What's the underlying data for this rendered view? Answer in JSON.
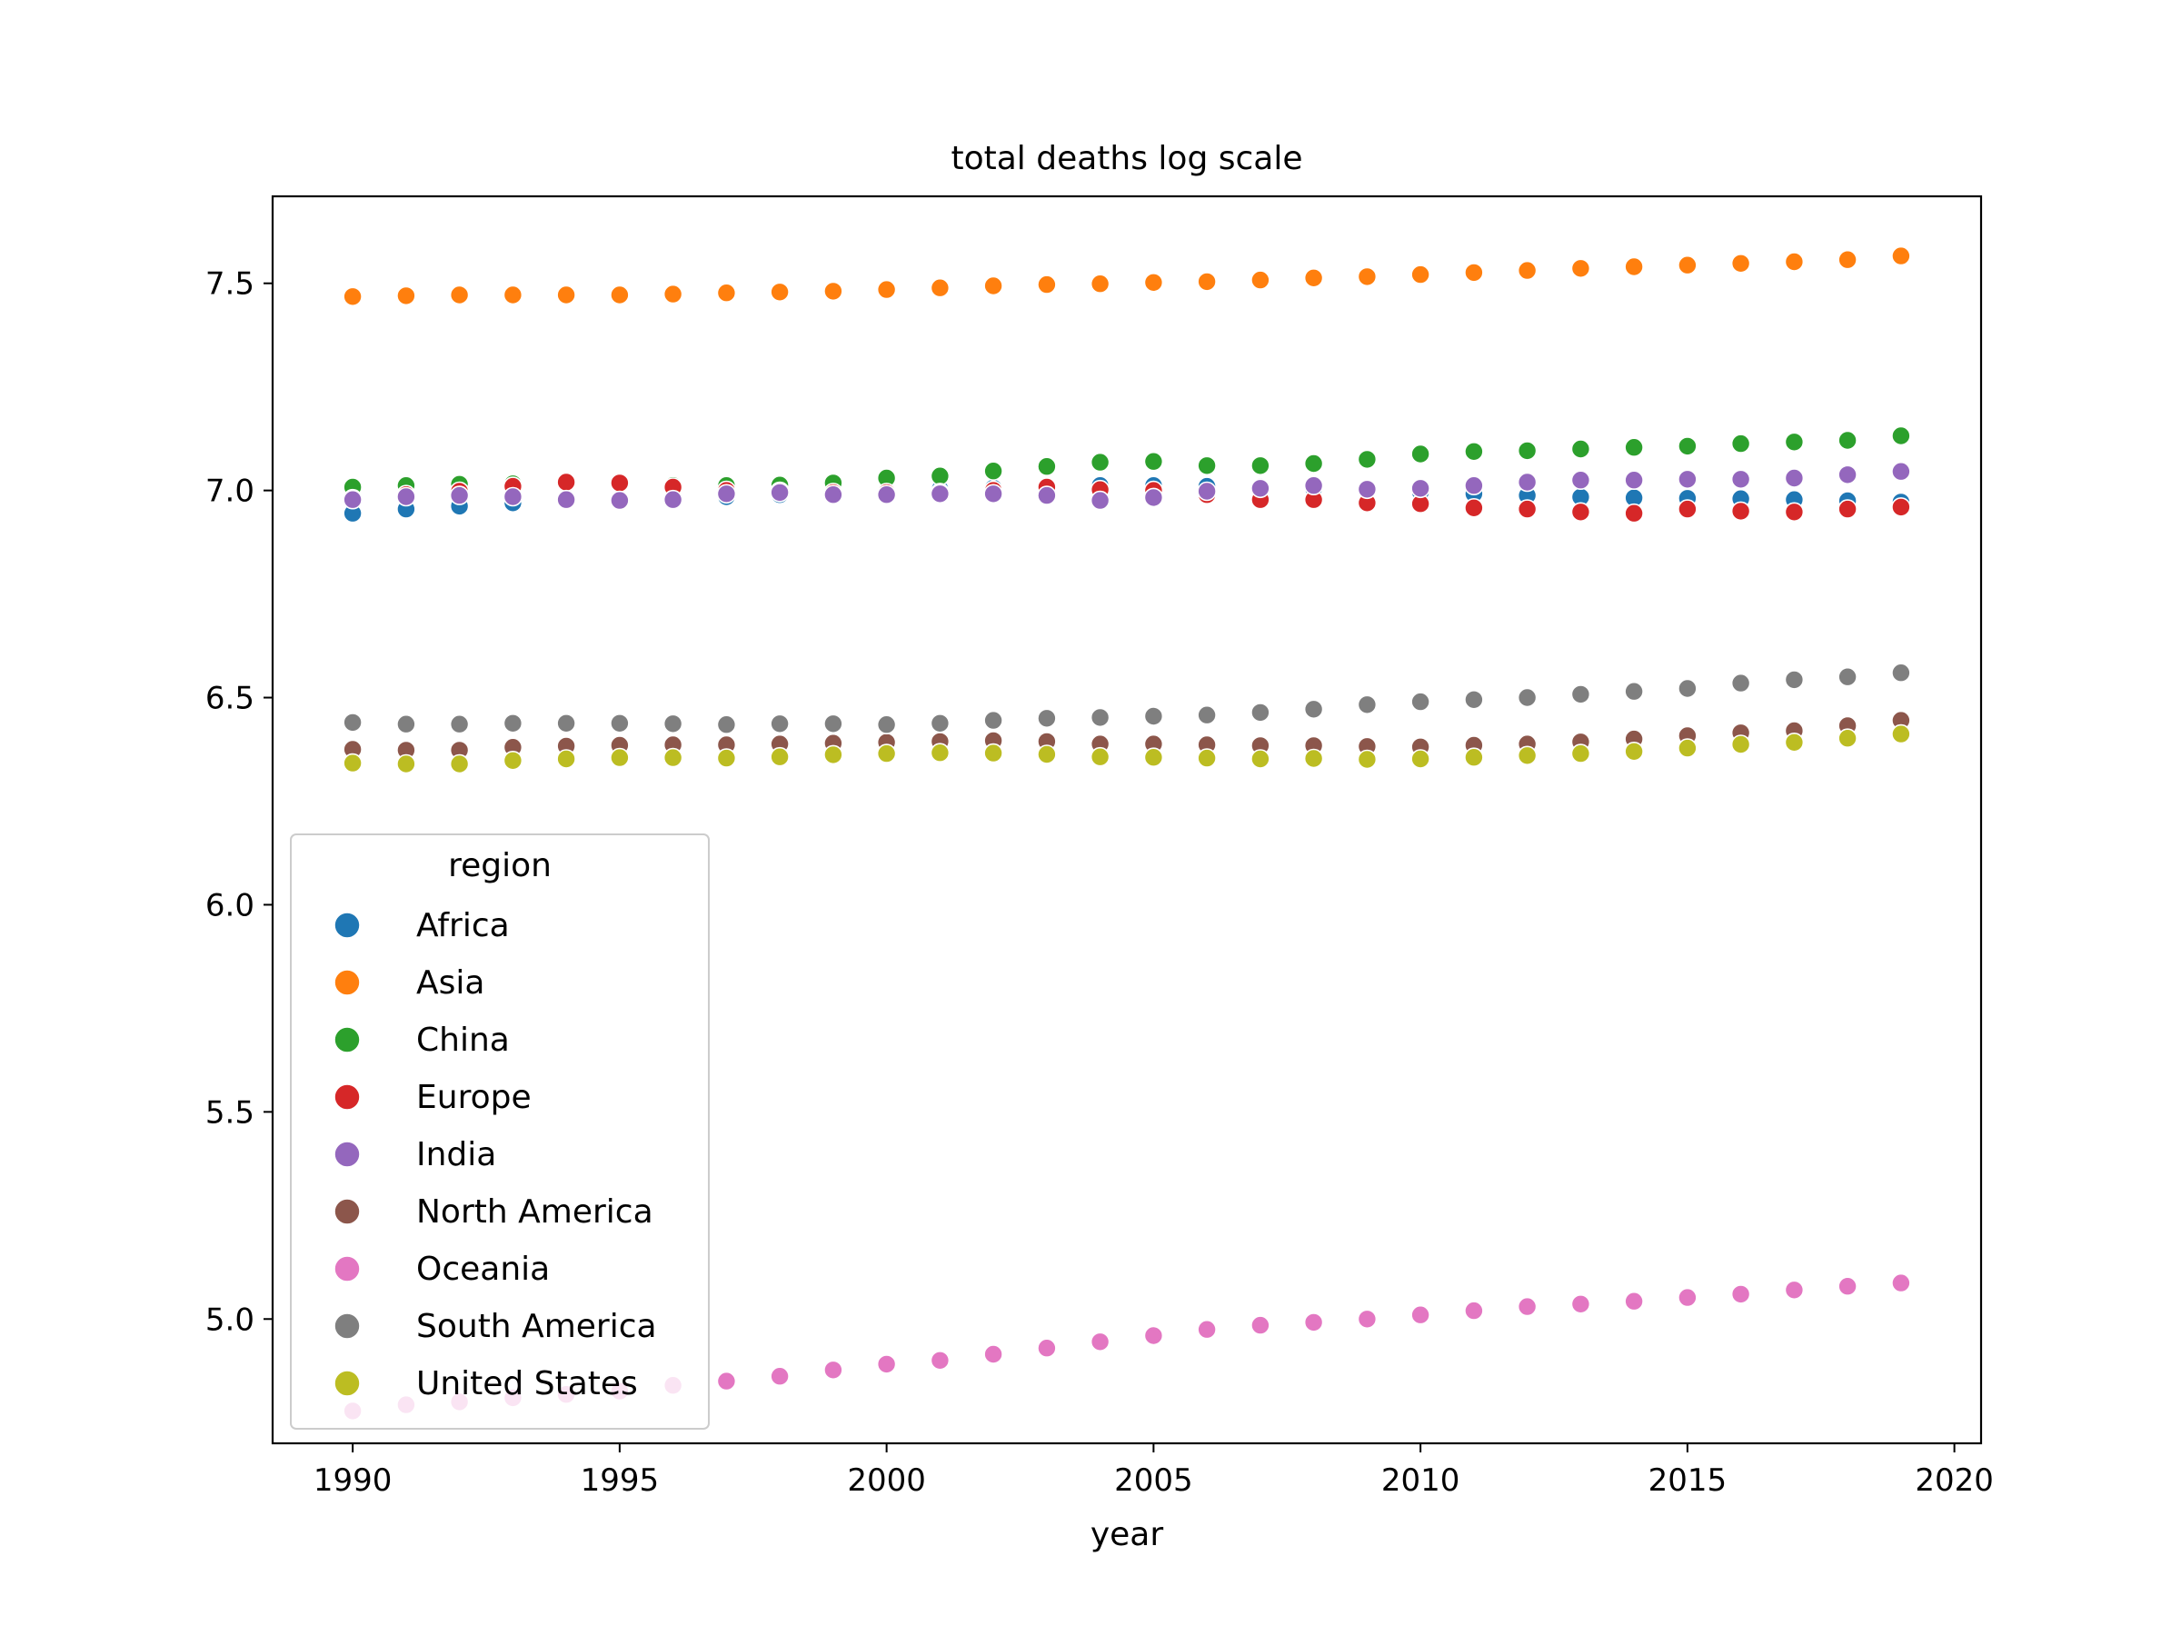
{
  "chart_data": {
    "type": "scatter",
    "title": "total deaths log scale",
    "xlabel": "year",
    "ylabel": "",
    "xlim": [
      1988.5,
      2020.5
    ],
    "ylim": [
      4.7,
      7.71
    ],
    "xticks": [
      1990,
      1995,
      2000,
      2005,
      2010,
      2015,
      2020
    ],
    "yticks": [
      5.0,
      5.5,
      6.0,
      6.5,
      7.0,
      7.5
    ],
    "ytick_labels": [
      "5.0",
      "5.5",
      "6.0",
      "6.5",
      "7.0",
      "7.5"
    ],
    "grid": false,
    "legend": {
      "title": "region",
      "position": "lower-left"
    },
    "x": [
      1990,
      1991,
      1992,
      1993,
      1994,
      1995,
      1996,
      1997,
      1998,
      1999,
      2000,
      2001,
      2002,
      2003,
      2004,
      2005,
      2006,
      2007,
      2008,
      2009,
      2010,
      2011,
      2012,
      2013,
      2014,
      2015,
      2016,
      2017,
      2018,
      2019
    ],
    "series": [
      {
        "name": "Africa",
        "color": "#1f77b4",
        "values": [
          6.945,
          6.955,
          6.962,
          6.97,
          6.978,
          6.98,
          6.982,
          6.985,
          6.99,
          6.995,
          7.0,
          7.003,
          7.006,
          7.01,
          7.012,
          7.012,
          7.01,
          7.008,
          7.004,
          7.0,
          6.996,
          6.992,
          6.988,
          6.984,
          6.982,
          6.981,
          6.98,
          6.978,
          6.975,
          6.972
        ]
      },
      {
        "name": "Asia",
        "color": "#ff7f0e",
        "values": [
          7.468,
          7.47,
          7.472,
          7.472,
          7.472,
          7.472,
          7.474,
          7.477,
          7.479,
          7.481,
          7.485,
          7.489,
          7.494,
          7.497,
          7.499,
          7.502,
          7.504,
          7.508,
          7.513,
          7.516,
          7.521,
          7.526,
          7.531,
          7.536,
          7.54,
          7.544,
          7.548,
          7.552,
          7.557,
          7.566
        ]
      },
      {
        "name": "China",
        "color": "#2ca02c",
        "values": [
          7.008,
          7.012,
          7.015,
          7.016,
          7.016,
          7.015,
          7.012,
          7.012,
          7.013,
          7.018,
          7.03,
          7.035,
          7.047,
          7.058,
          7.068,
          7.07,
          7.06,
          7.06,
          7.065,
          7.075,
          7.088,
          7.094,
          7.096,
          7.1,
          7.104,
          7.107,
          7.113,
          7.117,
          7.121,
          7.132
        ]
      },
      {
        "name": "Europe",
        "color": "#d62728",
        "values": [
          6.98,
          6.99,
          6.998,
          7.01,
          7.02,
          7.018,
          7.008,
          7.0,
          6.998,
          6.995,
          6.995,
          6.995,
          7.0,
          7.008,
          7.002,
          7.0,
          6.99,
          6.978,
          6.978,
          6.97,
          6.968,
          6.958,
          6.955,
          6.948,
          6.945,
          6.955,
          6.95,
          6.948,
          6.955,
          6.96
        ]
      },
      {
        "name": "India",
        "color": "#9467bd",
        "values": [
          6.978,
          6.985,
          6.988,
          6.985,
          6.978,
          6.976,
          6.978,
          6.992,
          6.995,
          6.99,
          6.99,
          6.992,
          6.992,
          6.988,
          6.976,
          6.983,
          6.998,
          7.005,
          7.012,
          7.003,
          7.005,
          7.012,
          7.02,
          7.025,
          7.025,
          7.027,
          7.027,
          7.03,
          7.038,
          7.046
        ]
      },
      {
        "name": "North America",
        "color": "#8c564b",
        "values": [
          6.375,
          6.373,
          6.373,
          6.38,
          6.383,
          6.385,
          6.386,
          6.386,
          6.388,
          6.39,
          6.392,
          6.394,
          6.396,
          6.394,
          6.388,
          6.388,
          6.386,
          6.384,
          6.384,
          6.382,
          6.381,
          6.385,
          6.388,
          6.393,
          6.4,
          6.408,
          6.415,
          6.42,
          6.432,
          6.445
        ]
      },
      {
        "name": "Oceania",
        "color": "#e377c2",
        "values": [
          4.778,
          4.793,
          4.8,
          4.81,
          4.818,
          4.826,
          4.84,
          4.85,
          4.862,
          4.877,
          4.891,
          4.9,
          4.915,
          4.93,
          4.945,
          4.96,
          4.975,
          4.985,
          4.992,
          5.0,
          5.01,
          5.02,
          5.03,
          5.036,
          5.043,
          5.052,
          5.06,
          5.07,
          5.079,
          5.087
        ]
      },
      {
        "name": "South America",
        "color": "#7f7f7f",
        "values": [
          6.44,
          6.436,
          6.436,
          6.438,
          6.438,
          6.438,
          6.437,
          6.435,
          6.437,
          6.437,
          6.435,
          6.438,
          6.445,
          6.45,
          6.452,
          6.455,
          6.458,
          6.464,
          6.472,
          6.483,
          6.49,
          6.495,
          6.5,
          6.508,
          6.515,
          6.522,
          6.535,
          6.543,
          6.55,
          6.56
        ]
      },
      {
        "name": "United States",
        "color": "#bcbd22",
        "values": [
          6.342,
          6.34,
          6.34,
          6.348,
          6.352,
          6.355,
          6.355,
          6.354,
          6.357,
          6.362,
          6.365,
          6.367,
          6.366,
          6.363,
          6.357,
          6.356,
          6.354,
          6.352,
          6.353,
          6.351,
          6.352,
          6.356,
          6.36,
          6.365,
          6.37,
          6.378,
          6.387,
          6.392,
          6.402,
          6.412
        ]
      }
    ]
  }
}
